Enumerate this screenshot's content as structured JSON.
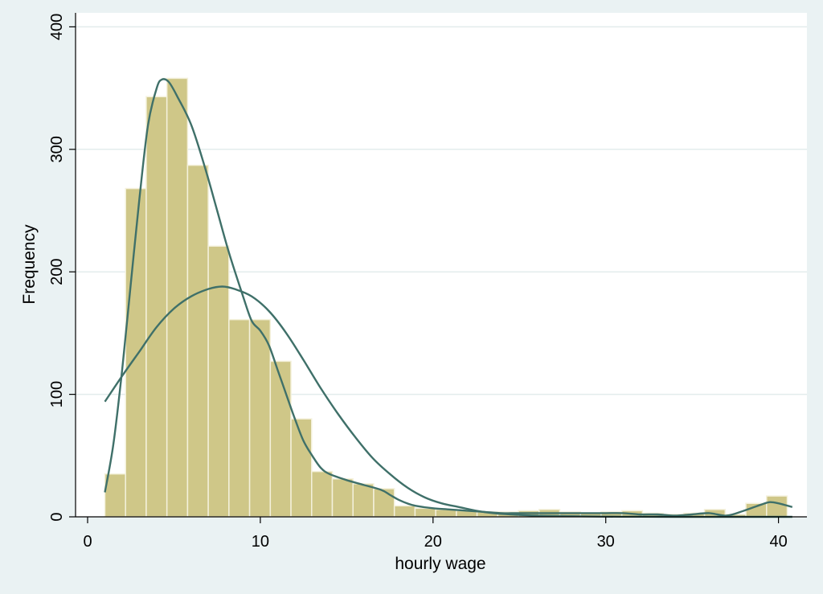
{
  "chart_data": {
    "type": "bar",
    "xlabel": "hourly wage",
    "ylabel": "Frequency",
    "xlim": [
      0,
      41.5
    ],
    "ylim": [
      0,
      400
    ],
    "x_ticks": [
      0,
      10,
      20,
      30,
      40
    ],
    "y_ticks": [
      0,
      100,
      200,
      300,
      400
    ],
    "grid": true,
    "colors": {
      "background": "#eaf2f3",
      "plot_area": "#ffffff",
      "bar_fill": "#cfc788",
      "bar_edge": "#f4f1dc",
      "curve": "#3f7069",
      "grid": "#e3ecec"
    },
    "bin_width": 1.1972,
    "bins": [
      {
        "x": 1.0,
        "value": 35
      },
      {
        "x": 2.197,
        "value": 268
      },
      {
        "x": 3.394,
        "value": 343
      },
      {
        "x": 4.592,
        "value": 358
      },
      {
        "x": 5.789,
        "value": 287
      },
      {
        "x": 6.986,
        "value": 221
      },
      {
        "x": 8.183,
        "value": 161
      },
      {
        "x": 9.38,
        "value": 161
      },
      {
        "x": 10.578,
        "value": 127
      },
      {
        "x": 11.775,
        "value": 80
      },
      {
        "x": 12.972,
        "value": 37
      },
      {
        "x": 14.169,
        "value": 31
      },
      {
        "x": 15.366,
        "value": 27
      },
      {
        "x": 16.563,
        "value": 23
      },
      {
        "x": 17.761,
        "value": 9
      },
      {
        "x": 18.958,
        "value": 7
      },
      {
        "x": 20.155,
        "value": 6
      },
      {
        "x": 21.352,
        "value": 5
      },
      {
        "x": 22.549,
        "value": 4
      },
      {
        "x": 23.747,
        "value": 4
      },
      {
        "x": 24.944,
        "value": 5
      },
      {
        "x": 26.141,
        "value": 6
      },
      {
        "x": 27.338,
        "value": 4
      },
      {
        "x": 28.535,
        "value": 3
      },
      {
        "x": 29.732,
        "value": 4
      },
      {
        "x": 30.93,
        "value": 5
      },
      {
        "x": 32.127,
        "value": 3
      },
      {
        "x": 33.324,
        "value": 2
      },
      {
        "x": 34.521,
        "value": 3
      },
      {
        "x": 35.718,
        "value": 6
      },
      {
        "x": 36.916,
        "value": 2
      },
      {
        "x": 38.113,
        "value": 11
      },
      {
        "x": 39.31,
        "value": 17
      },
      {
        "x": 40.507,
        "value": 0
      }
    ],
    "series": [
      {
        "type": "kernel-density",
        "points": [
          [
            1,
            20
          ],
          [
            1.5,
            60
          ],
          [
            2,
            120
          ],
          [
            2.5,
            190
          ],
          [
            3,
            260
          ],
          [
            3.5,
            320
          ],
          [
            4,
            350
          ],
          [
            4.3,
            357
          ],
          [
            4.7,
            355
          ],
          [
            5.2,
            343
          ],
          [
            6,
            320
          ],
          [
            6.8,
            285
          ],
          [
            7.5,
            250
          ],
          [
            8.2,
            215
          ],
          [
            9,
            180
          ],
          [
            9.5,
            160
          ],
          [
            10,
            152
          ],
          [
            10.5,
            140
          ],
          [
            11,
            120
          ],
          [
            11.5,
            100
          ],
          [
            12,
            80
          ],
          [
            12.5,
            62
          ],
          [
            13,
            50
          ],
          [
            13.5,
            40
          ],
          [
            14,
            35
          ],
          [
            15,
            30
          ],
          [
            16,
            26
          ],
          [
            17,
            22
          ],
          [
            17.5,
            18
          ],
          [
            18,
            14
          ],
          [
            18.5,
            11
          ],
          [
            19,
            9
          ],
          [
            20,
            7
          ],
          [
            21,
            6
          ],
          [
            22,
            5
          ],
          [
            23,
            4
          ],
          [
            24,
            3
          ],
          [
            25,
            3
          ],
          [
            26,
            3
          ],
          [
            27,
            3
          ],
          [
            28,
            3
          ],
          [
            29,
            3
          ],
          [
            30,
            3
          ],
          [
            31,
            3
          ],
          [
            32,
            2
          ],
          [
            33,
            2
          ],
          [
            34,
            1
          ],
          [
            35,
            2
          ],
          [
            36,
            3
          ],
          [
            37,
            1
          ],
          [
            38,
            5
          ],
          [
            39,
            10
          ],
          [
            39.5,
            12
          ],
          [
            40,
            11
          ],
          [
            40.8,
            8
          ]
        ]
      },
      {
        "type": "normal-density",
        "points": [
          [
            1,
            94
          ],
          [
            2,
            115
          ],
          [
            3,
            135
          ],
          [
            4,
            155
          ],
          [
            5,
            170
          ],
          [
            6,
            180
          ],
          [
            7,
            186
          ],
          [
            7.8,
            188
          ],
          [
            8.5,
            186
          ],
          [
            9.5,
            180
          ],
          [
            10.5,
            168
          ],
          [
            11.5,
            150
          ],
          [
            12.5,
            128
          ],
          [
            13.5,
            105
          ],
          [
            14.5,
            84
          ],
          [
            15.5,
            65
          ],
          [
            16.5,
            48
          ],
          [
            17.5,
            35
          ],
          [
            18.5,
            24
          ],
          [
            19.5,
            16
          ],
          [
            20.5,
            11
          ],
          [
            21.5,
            8
          ],
          [
            22.5,
            5
          ],
          [
            23.5,
            3
          ],
          [
            24.5,
            2
          ],
          [
            26,
            1
          ],
          [
            28,
            0.5
          ],
          [
            30,
            0.2
          ],
          [
            32,
            0.1
          ],
          [
            34,
            0
          ],
          [
            36,
            0
          ],
          [
            38,
            0
          ],
          [
            40.8,
            0
          ]
        ]
      }
    ]
  }
}
